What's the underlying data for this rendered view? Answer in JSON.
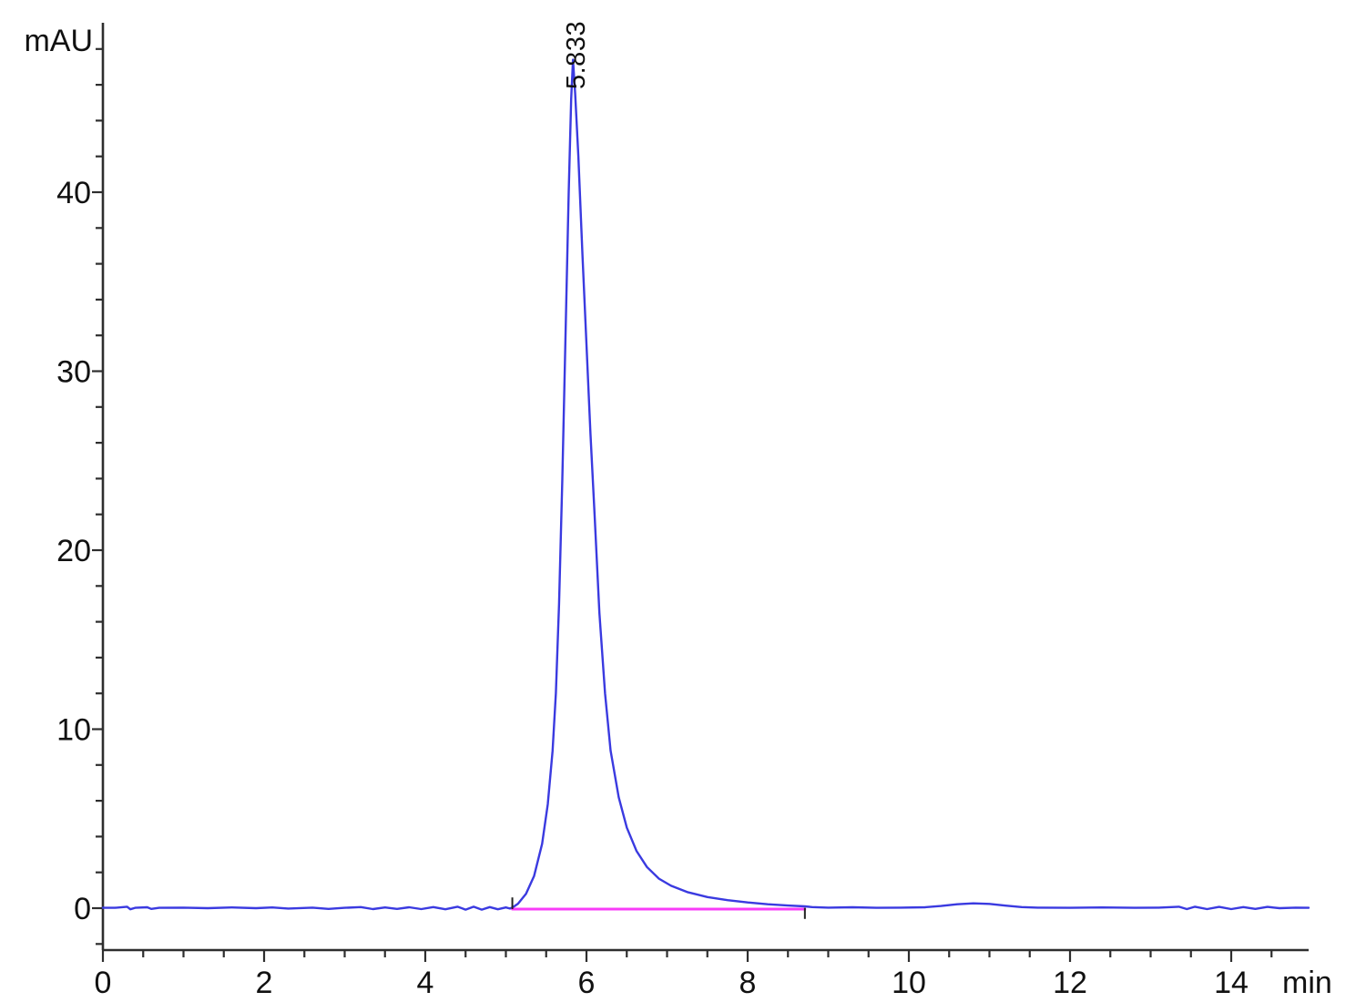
{
  "chart_data": {
    "type": "line",
    "title": "",
    "xlabel": "min",
    "ylabel": "mAU",
    "xlim": [
      0,
      14.96
    ],
    "ylim": [
      -2.3,
      49.5
    ],
    "grid": false,
    "legend": null,
    "x_axis": {
      "major_ticks": [
        0,
        2,
        4,
        6,
        8,
        10,
        12,
        14
      ],
      "minor_tick_step": 0.5,
      "minor_first": 0.5,
      "minor_last": 14.5
    },
    "y_axis": {
      "major_ticks": [
        0,
        10,
        20,
        30,
        40
      ],
      "minor_tick_step": 2,
      "minor_first": -2,
      "minor_last": 48
    },
    "peaks": [
      {
        "label": "5.833",
        "retention_time_min": 5.833,
        "apex_mAU": 47.4,
        "integration_start_min": 5.08,
        "integration_end_min": 8.71
      }
    ],
    "integration_markers": [
      {
        "t": 5.08,
        "v_top": 0.6,
        "v_bottom": -0.05
      },
      {
        "t": 8.71,
        "v_top": 0.02,
        "v_bottom": -0.6
      }
    ],
    "colors": {
      "trace": "#3a3ae0",
      "baseline": "#f83cf8",
      "axis": "#2e2e2e",
      "text": "#111111"
    },
    "series": [
      {
        "name": "detector-signal",
        "color": "#3a3ae0",
        "width": 2.4,
        "points": [
          [
            0.0,
            0.02
          ],
          [
            0.15,
            0.02
          ],
          [
            0.3,
            0.08
          ],
          [
            0.34,
            -0.06
          ],
          [
            0.4,
            0.02
          ],
          [
            0.55,
            0.05
          ],
          [
            0.6,
            -0.04
          ],
          [
            0.7,
            0.02
          ],
          [
            1.0,
            0.03
          ],
          [
            1.3,
            0.0
          ],
          [
            1.6,
            0.04
          ],
          [
            1.9,
            0.0
          ],
          [
            2.1,
            0.04
          ],
          [
            2.3,
            -0.02
          ],
          [
            2.6,
            0.03
          ],
          [
            2.8,
            -0.04
          ],
          [
            3.0,
            0.02
          ],
          [
            3.2,
            0.06
          ],
          [
            3.35,
            -0.05
          ],
          [
            3.5,
            0.04
          ],
          [
            3.65,
            -0.04
          ],
          [
            3.8,
            0.05
          ],
          [
            3.95,
            -0.05
          ],
          [
            4.1,
            0.06
          ],
          [
            4.25,
            -0.06
          ],
          [
            4.4,
            0.08
          ],
          [
            4.5,
            -0.08
          ],
          [
            4.6,
            0.08
          ],
          [
            4.7,
            -0.08
          ],
          [
            4.8,
            0.06
          ],
          [
            4.9,
            -0.06
          ],
          [
            5.0,
            0.04
          ],
          [
            5.05,
            -0.02
          ],
          [
            5.08,
            0.03
          ],
          [
            5.15,
            0.25
          ],
          [
            5.25,
            0.8
          ],
          [
            5.35,
            1.8
          ],
          [
            5.45,
            3.6
          ],
          [
            5.52,
            5.8
          ],
          [
            5.58,
            8.8
          ],
          [
            5.62,
            12.0
          ],
          [
            5.66,
            17.0
          ],
          [
            5.7,
            24.0
          ],
          [
            5.74,
            32.0
          ],
          [
            5.78,
            40.0
          ],
          [
            5.81,
            45.2
          ],
          [
            5.833,
            47.4
          ],
          [
            5.86,
            45.5
          ],
          [
            5.9,
            42.0
          ],
          [
            5.95,
            36.5
          ],
          [
            6.0,
            31.5
          ],
          [
            6.05,
            26.5
          ],
          [
            6.1,
            22.0
          ],
          [
            6.16,
            16.5
          ],
          [
            6.23,
            12.0
          ],
          [
            6.3,
            8.8
          ],
          [
            6.4,
            6.2
          ],
          [
            6.5,
            4.5
          ],
          [
            6.62,
            3.2
          ],
          [
            6.75,
            2.3
          ],
          [
            6.9,
            1.65
          ],
          [
            7.05,
            1.25
          ],
          [
            7.25,
            0.9
          ],
          [
            7.5,
            0.62
          ],
          [
            7.75,
            0.45
          ],
          [
            8.0,
            0.32
          ],
          [
            8.25,
            0.22
          ],
          [
            8.5,
            0.15
          ],
          [
            8.71,
            0.1
          ],
          [
            8.8,
            0.06
          ],
          [
            9.0,
            0.03
          ],
          [
            9.3,
            0.05
          ],
          [
            9.6,
            0.02
          ],
          [
            9.9,
            0.03
          ],
          [
            10.2,
            0.05
          ],
          [
            10.4,
            0.12
          ],
          [
            10.6,
            0.22
          ],
          [
            10.8,
            0.27
          ],
          [
            11.0,
            0.24
          ],
          [
            11.2,
            0.14
          ],
          [
            11.4,
            0.06
          ],
          [
            11.6,
            0.03
          ],
          [
            12.0,
            0.02
          ],
          [
            12.4,
            0.04
          ],
          [
            12.8,
            0.02
          ],
          [
            13.1,
            0.03
          ],
          [
            13.35,
            0.08
          ],
          [
            13.45,
            -0.05
          ],
          [
            13.55,
            0.08
          ],
          [
            13.7,
            -0.05
          ],
          [
            13.85,
            0.07
          ],
          [
            14.0,
            -0.05
          ],
          [
            14.15,
            0.06
          ],
          [
            14.3,
            -0.04
          ],
          [
            14.45,
            0.07
          ],
          [
            14.6,
            0.0
          ],
          [
            14.8,
            0.03
          ],
          [
            14.96,
            0.02
          ]
        ]
      },
      {
        "name": "integration-baseline",
        "color": "#f83cf8",
        "width": 3,
        "points": [
          [
            5.08,
            -0.05
          ],
          [
            8.71,
            -0.05
          ]
        ]
      }
    ]
  }
}
